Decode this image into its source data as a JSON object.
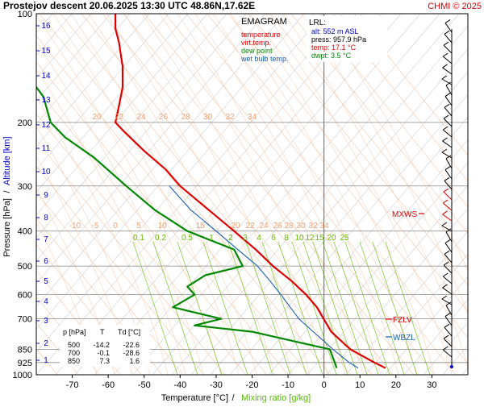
{
  "header": {
    "title": "Prostejov   descent   20.06.2025 13:30 UTC  48.86N,17.62E",
    "copyright": "CHMI © 2025"
  },
  "legend": {
    "heading": "EMAGRAM",
    "items": [
      {
        "label": "temperature",
        "color": "#dd0000"
      },
      {
        "label": "virt.temp.",
        "color": "#dd0000"
      },
      {
        "label": "dew point",
        "color": "#008800"
      },
      {
        "label": "wet bulb temp.",
        "color": "#1a5fb4"
      }
    ]
  },
  "lrl": {
    "heading": "LRL:",
    "lines": [
      {
        "text": "alt: 552 m ASL",
        "color": "#0000cc"
      },
      {
        "text": "press: 957.9 hPa",
        "color": "#000000"
      },
      {
        "text": "temp: 17.1 °C",
        "color": "#dd0000"
      },
      {
        "text": "dwpt: 3.5 °C",
        "color": "#008800"
      }
    ]
  },
  "table": {
    "headers": [
      "p [hPa]",
      "T",
      "Td [°C]"
    ],
    "rows": [
      [
        "500",
        "-14.2",
        "-22.6"
      ],
      [
        "700",
        "-0.1",
        "-28.6"
      ],
      [
        "850",
        "7.3",
        "1.6"
      ]
    ]
  },
  "levels": {
    "mxws": "MXWS",
    "fzlv": "FZLV",
    "wbzl": "WBZL"
  },
  "axis_labels": {
    "x_temp": "Temperature [°C]",
    "x_sep": "/",
    "x_mix": "Mixing ratio [g/kg]",
    "y_pres": "Pressure [hPa]",
    "y_sep": "/",
    "y_alt": "Altitude [km]"
  },
  "chart_data": {
    "type": "line",
    "x_axis": {
      "label": "Temperature [°C]",
      "range": [
        -80,
        40
      ],
      "ticks": [
        -70,
        -60,
        -50,
        -40,
        -30,
        -20,
        -10,
        0,
        10,
        20,
        30
      ]
    },
    "y_axis": {
      "label": "Pressure [hPa]",
      "scale": "log",
      "range": [
        1000,
        100
      ],
      "ticks": [
        100,
        200,
        300,
        400,
        500,
        600,
        700,
        850,
        925,
        1000
      ]
    },
    "altitude_ticks_km": [
      1,
      2,
      3,
      4,
      5,
      6,
      7,
      8,
      9,
      10,
      11,
      12,
      13,
      14,
      15,
      16
    ],
    "mixing_ratio_labels_upper": [
      "20",
      "22",
      "24",
      "26",
      "28",
      "30",
      "32",
      "34"
    ],
    "mixing_ratio_labels_mid": [
      "-10",
      "-5",
      "0",
      "5",
      "10",
      "15",
      "20",
      "22",
      "24",
      "26",
      "28",
      "30",
      "32",
      "34"
    ],
    "mixing_ratio_labels_lower": [
      "0.1",
      "0.2",
      "0.5",
      "1",
      "2",
      "3",
      "4",
      "6",
      "8",
      "10",
      "12",
      "15",
      "20",
      "25"
    ],
    "series": [
      {
        "name": "temperature",
        "color": "#dd0000",
        "points": [
          [
            17.1,
            957.9
          ],
          [
            14,
            925
          ],
          [
            7.3,
            850
          ],
          [
            2,
            760
          ],
          [
            1,
            730
          ],
          [
            -0.1,
            700
          ],
          [
            -2,
            650
          ],
          [
            -5,
            600
          ],
          [
            -9,
            550
          ],
          [
            -14.2,
            500
          ],
          [
            -19,
            450
          ],
          [
            -25,
            400
          ],
          [
            -32,
            350
          ],
          [
            -40,
            300
          ],
          [
            -44,
            270
          ],
          [
            -50,
            240
          ],
          [
            -56,
            210
          ],
          [
            -58,
            200
          ],
          [
            -57,
            180
          ],
          [
            -56,
            160
          ],
          [
            -56,
            140
          ],
          [
            -57,
            120
          ],
          [
            -58,
            110
          ],
          [
            -58,
            100
          ]
        ]
      },
      {
        "name": "dew point",
        "color": "#008800",
        "points": [
          [
            3.5,
            957.9
          ],
          [
            3,
            925
          ],
          [
            1.6,
            850
          ],
          [
            -20,
            760
          ],
          [
            -36,
            730
          ],
          [
            -28.6,
            700
          ],
          [
            -42,
            650
          ],
          [
            -36,
            600
          ],
          [
            -38,
            570
          ],
          [
            -33,
            530
          ],
          [
            -22.6,
            500
          ],
          [
            -25,
            450
          ],
          [
            -38,
            400
          ],
          [
            -47,
            350
          ],
          [
            -55,
            300
          ],
          [
            -64,
            250
          ],
          [
            -72,
            220
          ],
          [
            -76,
            200
          ],
          [
            -78,
            170
          ],
          [
            -82,
            150
          ]
        ]
      },
      {
        "name": "wet bulb temp.",
        "color": "#1a5fb4",
        "points": [
          [
            9.5,
            957.9
          ],
          [
            7,
            925
          ],
          [
            2.5,
            850
          ],
          [
            -3,
            760
          ],
          [
            -7,
            700
          ],
          [
            -12,
            600
          ],
          [
            -15,
            550
          ],
          [
            -18.5,
            500
          ],
          [
            -24,
            450
          ],
          [
            -30,
            400
          ],
          [
            -37,
            350
          ],
          [
            -43,
            300
          ]
        ]
      }
    ]
  }
}
